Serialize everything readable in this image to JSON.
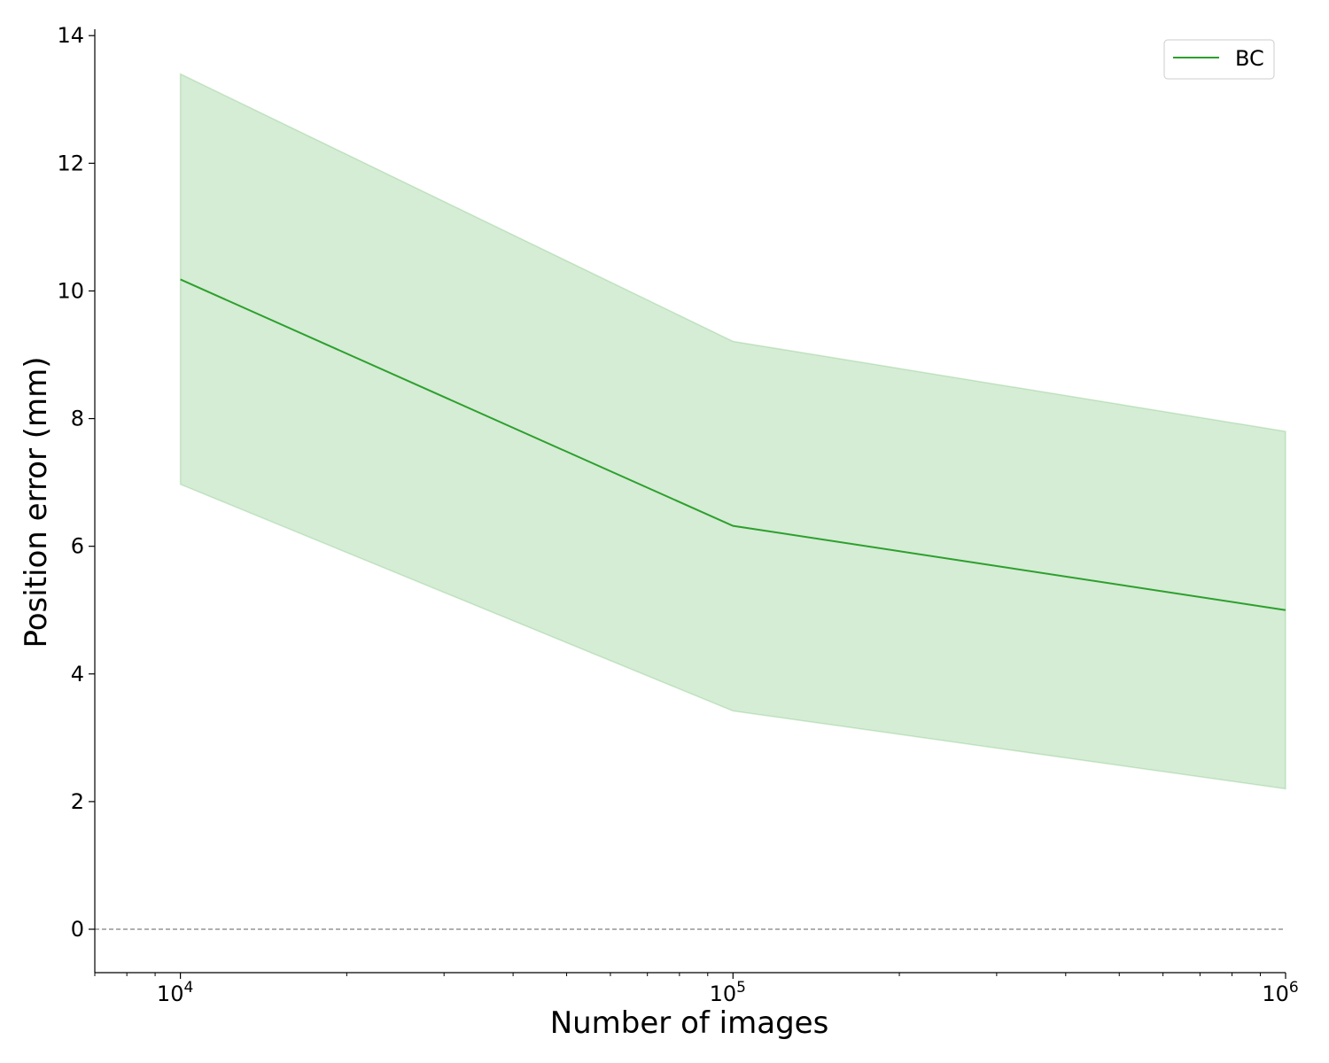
{
  "chart_data": {
    "type": "line",
    "xscale": "log",
    "title": "",
    "xlabel": "Number of images",
    "ylabel": "Position error (mm)",
    "xlim": [
      7000,
      1000000
    ],
    "ylim": [
      -0.68,
      14.1
    ],
    "x_ticks": [
      10000,
      100000,
      1000000
    ],
    "x_tick_labels": [
      {
        "base": "10",
        "exp": "4"
      },
      {
        "base": "10",
        "exp": "5"
      },
      {
        "base": "10",
        "exp": "6"
      }
    ],
    "y_ticks": [
      0,
      2,
      4,
      6,
      8,
      10,
      12,
      14
    ],
    "y_tick_labels": [
      "0",
      "2",
      "4",
      "6",
      "8",
      "10",
      "12",
      "14"
    ],
    "grid": false,
    "legend_position": "top-right",
    "reference_line": {
      "y": 0,
      "style": "dashed",
      "color": "#808080"
    },
    "series": [
      {
        "name": "BC",
        "color": "#2ca02c",
        "band_color": "#2ca02c",
        "x": [
          10000,
          100000,
          1000000
        ],
        "y": [
          10.18,
          6.32,
          5.0
        ],
        "lower": [
          6.97,
          3.42,
          2.2
        ],
        "upper": [
          13.4,
          9.21,
          7.8
        ]
      }
    ]
  }
}
